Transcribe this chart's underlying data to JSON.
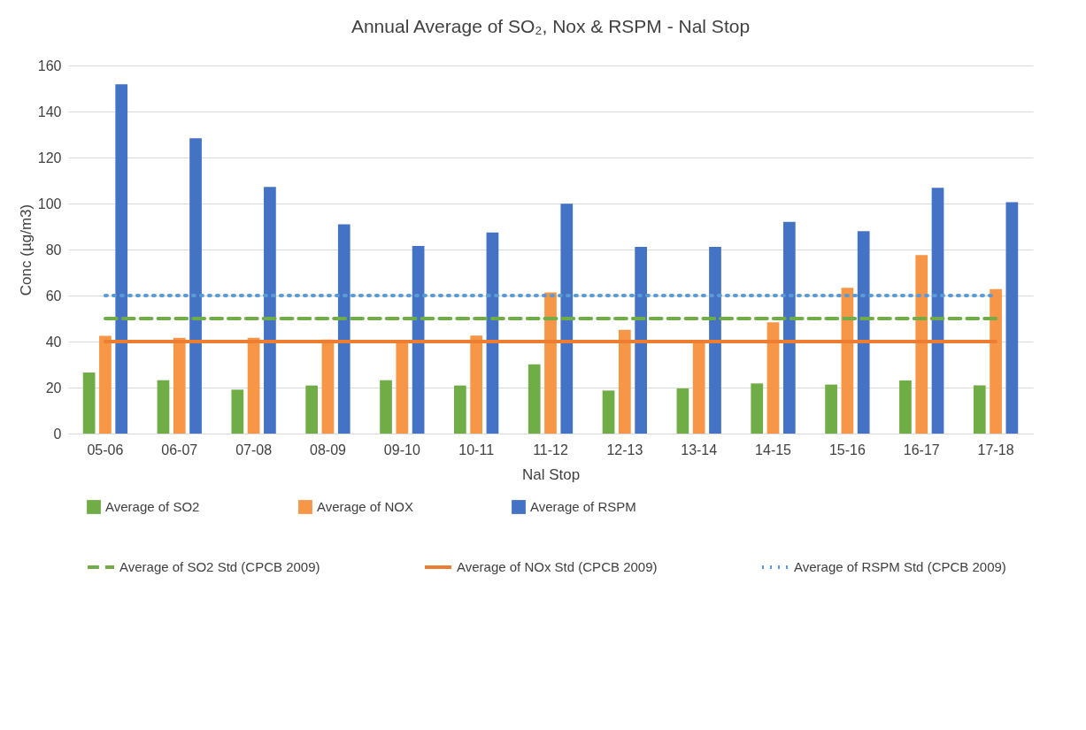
{
  "chart_data": {
    "type": "bar",
    "title": "Annual Average of SO₂, Nox & RSPM - Nal Stop",
    "xlabel": "Nal Stop",
    "ylabel": "Conc (µg/m3)",
    "categories": [
      "05-06",
      "06-07",
      "07-08",
      "08-09",
      "09-10",
      "10-11",
      "11-12",
      "12-13",
      "13-14",
      "14-15",
      "15-16",
      "16-17",
      "17-18"
    ],
    "series": [
      {
        "name": "Average of SO2",
        "color": "#70ad47",
        "values": [
          26.5,
          23.2,
          19.1,
          20.9,
          23.2,
          20.9,
          30.1,
          18.7,
          19.6,
          21.8,
          21.3,
          23.1,
          21
        ]
      },
      {
        "name": "Average of NOX",
        "color": "#f79646",
        "values": [
          42.5,
          41.6,
          41.6,
          40.9,
          39.5,
          42.6,
          61.3,
          45.1,
          39.5,
          48.4,
          63.4,
          77.6,
          62.8
        ]
      },
      {
        "name": "Average of RSPM",
        "color": "#4472c4",
        "values": [
          151.8,
          128.4,
          107.2,
          91,
          81.5,
          87.4,
          99.9,
          81.2,
          81.2,
          92,
          88,
          106.8,
          100.6
        ]
      },
      {
        "name": "Average of SO2 Std (CPCB 2009)",
        "type": "line",
        "line_style": "dashed",
        "color": "#70ad47",
        "values": [
          50,
          50,
          50,
          50,
          50,
          50,
          50,
          50,
          50,
          50,
          50,
          50,
          50
        ]
      },
      {
        "name": "Average of NOx Std (CPCB 2009)",
        "type": "line",
        "line_style": "solid",
        "color": "#ed7d31",
        "values": [
          40,
          40,
          40,
          40,
          40,
          40,
          40,
          40,
          40,
          40,
          40,
          40,
          40
        ]
      },
      {
        "name": "Average of RSPM Std (CPCB 2009)",
        "type": "line",
        "line_style": "dotted",
        "color": "#5b9bd5",
        "values": [
          60,
          60,
          60,
          60,
          60,
          60,
          60,
          60,
          60,
          60,
          60,
          60,
          60
        ]
      }
    ],
    "ylim": [
      0,
      160
    ],
    "yticks": [
      0,
      20,
      40,
      60,
      80,
      100,
      120,
      140,
      160
    ],
    "grid": "y",
    "legend": "bottom"
  }
}
